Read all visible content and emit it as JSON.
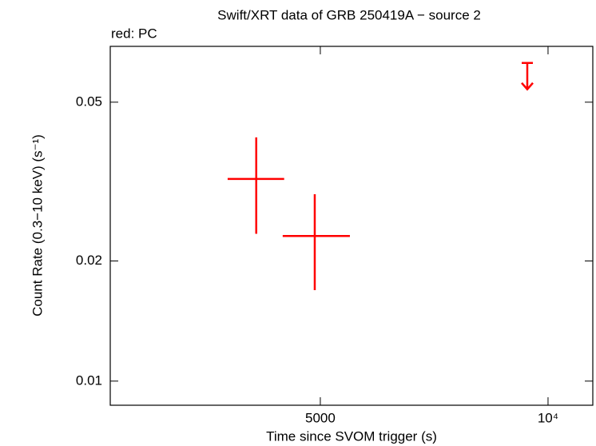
{
  "chart_data": {
    "type": "scatter",
    "title": "Swift/XRT data of GRB 250419A − source 2",
    "subtitle": "red: PC",
    "x_label": "Time since SVOM trigger (s)",
    "y_label": "Count Rate (0.3−10 keV) (s⁻¹)",
    "xscale": "log",
    "yscale": "log",
    "xlim": [
      2638,
      11460
    ],
    "ylim": [
      0.0087,
      0.069
    ],
    "xticks": [
      5000,
      {
        "value": 10000,
        "label": "10⁴"
      }
    ],
    "yticks": [
      0.01,
      0.02,
      0.05
    ],
    "series": [
      {
        "color": "#ff0000",
        "x": [
          4114,
          4916
        ],
        "x_low": [
          3771,
          4459
        ],
        "x_high": [
          4479,
          5471
        ],
        "y": [
          0.0321,
          0.0231
        ],
        "y_low": [
          0.0234,
          0.0169
        ],
        "y_high": [
          0.0408,
          0.0294
        ]
      }
    ],
    "upper_limits": {
      "color": "#ff0000",
      "x": [
        9388
      ],
      "y": [
        0.0627
      ]
    }
  }
}
